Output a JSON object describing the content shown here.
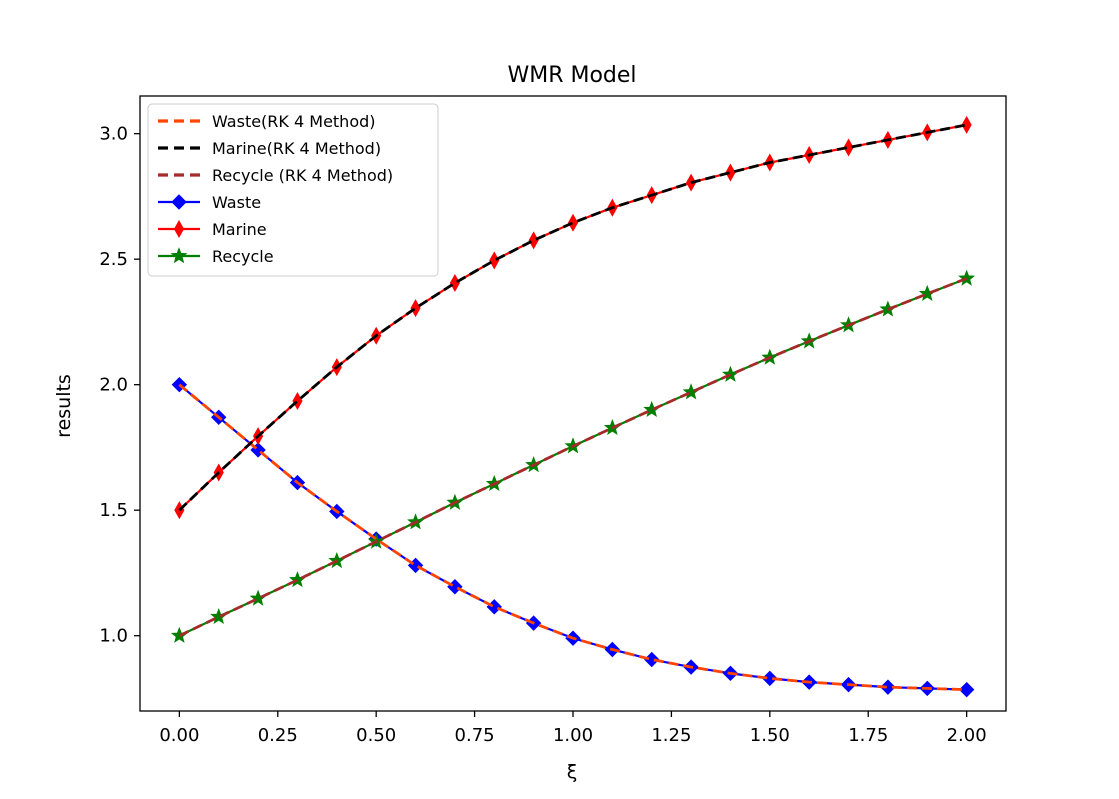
{
  "chart_data": {
    "type": "line",
    "title": "WMR Model",
    "xlabel": "ξ",
    "ylabel": "results",
    "xlim": [
      -0.1,
      2.1
    ],
    "ylim": [
      0.7,
      3.15
    ],
    "xticks": [
      0.0,
      0.25,
      0.5,
      0.75,
      1.0,
      1.25,
      1.5,
      1.75,
      2.0
    ],
    "xtick_labels": [
      "0.00",
      "0.25",
      "0.50",
      "0.75",
      "1.00",
      "1.25",
      "1.50",
      "1.75",
      "2.00"
    ],
    "yticks": [
      1.0,
      1.5,
      2.0,
      2.5,
      3.0
    ],
    "ytick_labels": [
      "1.0",
      "1.5",
      "2.0",
      "2.5",
      "3.0"
    ],
    "grid": false,
    "legend_position": "top-left",
    "x": [
      0.0,
      0.1,
      0.2,
      0.3,
      0.4,
      0.5,
      0.6,
      0.7,
      0.8,
      0.9,
      1.0,
      1.1,
      1.2,
      1.3,
      1.4,
      1.5,
      1.6,
      1.7,
      1.8,
      1.9,
      2.0
    ],
    "series": [
      {
        "name": "Waste(RK 4 Method)",
        "color": "#ff4500",
        "style": "dashed",
        "marker": "none",
        "values": [
          2.0,
          1.87,
          1.74,
          1.61,
          1.495,
          1.385,
          1.28,
          1.195,
          1.115,
          1.05,
          0.99,
          0.945,
          0.905,
          0.875,
          0.85,
          0.83,
          0.815,
          0.805,
          0.795,
          0.79,
          0.785
        ]
      },
      {
        "name": "Marine(RK 4 Method)",
        "color": "#000000",
        "style": "dashed",
        "marker": "none",
        "values": [
          1.5,
          1.65,
          1.795,
          1.935,
          2.07,
          2.195,
          2.305,
          2.405,
          2.495,
          2.575,
          2.645,
          2.705,
          2.755,
          2.805,
          2.845,
          2.885,
          2.915,
          2.945,
          2.975,
          3.005,
          3.035
        ]
      },
      {
        "name": "Recycle (RK 4 Method)",
        "color": "#a52a2a",
        "style": "dashed",
        "marker": "none",
        "values": [
          1.0,
          1.075,
          1.148,
          1.222,
          1.298,
          1.375,
          1.452,
          1.53,
          1.605,
          1.68,
          1.755,
          1.828,
          1.9,
          1.97,
          2.04,
          2.108,
          2.173,
          2.237,
          2.3,
          2.362,
          2.423
        ]
      },
      {
        "name": "Waste",
        "color": "#0000ff",
        "style": "solid",
        "marker": "diamond",
        "values": [
          2.0,
          1.87,
          1.74,
          1.61,
          1.495,
          1.385,
          1.28,
          1.195,
          1.115,
          1.05,
          0.99,
          0.945,
          0.905,
          0.875,
          0.85,
          0.83,
          0.815,
          0.805,
          0.795,
          0.79,
          0.785
        ]
      },
      {
        "name": "Marine",
        "color": "#ff0000",
        "style": "solid",
        "marker": "thin-diamond",
        "values": [
          1.5,
          1.65,
          1.795,
          1.935,
          2.07,
          2.195,
          2.305,
          2.405,
          2.495,
          2.575,
          2.645,
          2.705,
          2.755,
          2.805,
          2.845,
          2.885,
          2.915,
          2.945,
          2.975,
          3.005,
          3.035
        ]
      },
      {
        "name": "Recycle",
        "color": "#008000",
        "style": "solid",
        "marker": "star",
        "values": [
          1.0,
          1.075,
          1.148,
          1.222,
          1.298,
          1.375,
          1.452,
          1.53,
          1.605,
          1.68,
          1.755,
          1.828,
          1.9,
          1.97,
          2.04,
          2.108,
          2.173,
          2.237,
          2.3,
          2.362,
          2.423
        ]
      }
    ]
  }
}
